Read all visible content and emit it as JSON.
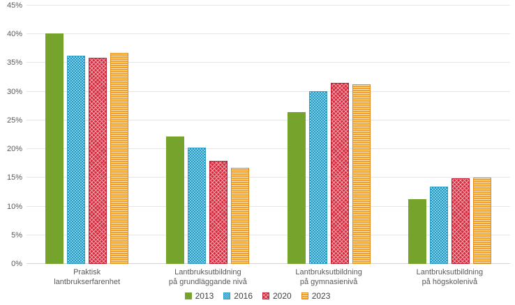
{
  "figure": {
    "background": "#ffffff",
    "text_color": "#595959",
    "grid_color": "#e6e6e6",
    "baseline_color": "#d2d2d2"
  },
  "chart_data": {
    "type": "bar",
    "title": "",
    "xlabel": "",
    "ylabel": "",
    "ylim": [
      0,
      45
    ],
    "ytick_step": 5,
    "ytick_suffix": "%",
    "grid": true,
    "legend_position": "bottom",
    "categories": [
      "Praktisk\nlantbrukserfarenhet",
      "Lantbruksutbildning\npå grundläggande nivå",
      "Lantbruksutbildning\npå gymnasienivå",
      "Lantbruksutbildning\npå högskolenivå"
    ],
    "series": [
      {
        "name": "2013",
        "values": [
          40.2,
          22.2,
          26.5,
          11.3
        ],
        "color": "#76a32b",
        "pattern": "solid",
        "pattern_color": "#76a32b",
        "border_color": "#76a32b"
      },
      {
        "name": "2016",
        "values": [
          36.3,
          20.2,
          30.1,
          13.5
        ],
        "color": "#7fd0e8",
        "pattern": "checker",
        "pattern_color": "#2497c0",
        "border_color": "#2e9fc4"
      },
      {
        "name": "2020",
        "values": [
          35.9,
          17.9,
          31.5,
          14.9
        ],
        "color": "#d5293d",
        "pattern": "diamond",
        "pattern_color": "#f2a3ab",
        "border_color": "#c41f33"
      },
      {
        "name": "2023",
        "values": [
          36.8,
          16.8,
          31.3,
          15.1
        ],
        "color": "#f5a02b",
        "pattern": "hstripe",
        "pattern_color": "#fce4bd",
        "border_color": "#e18b17"
      }
    ]
  }
}
